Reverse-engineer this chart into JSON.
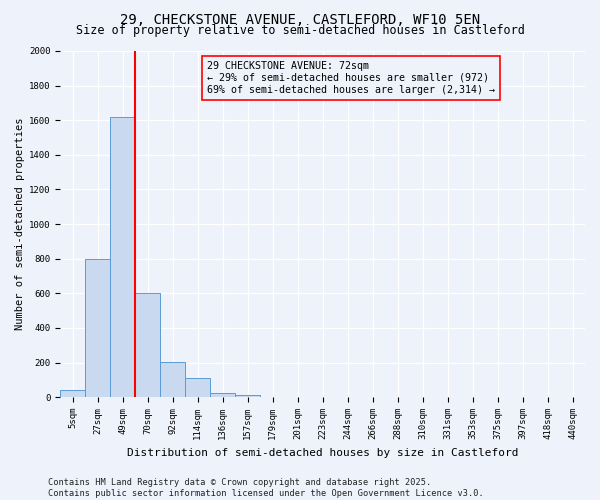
{
  "title": "29, CHECKSTONE AVENUE, CASTLEFORD, WF10 5EN",
  "subtitle": "Size of property relative to semi-detached houses in Castleford",
  "xlabel": "Distribution of semi-detached houses by size in Castleford",
  "ylabel": "Number of semi-detached properties",
  "bins": [
    "5sqm",
    "27sqm",
    "49sqm",
    "70sqm",
    "92sqm",
    "114sqm",
    "136sqm",
    "157sqm",
    "179sqm",
    "201sqm",
    "223sqm",
    "244sqm",
    "266sqm",
    "288sqm",
    "310sqm",
    "331sqm",
    "353sqm",
    "375sqm",
    "397sqm",
    "418sqm",
    "440sqm"
  ],
  "values": [
    40,
    800,
    1620,
    600,
    205,
    110,
    25,
    10,
    0,
    0,
    0,
    0,
    0,
    0,
    0,
    0,
    0,
    0,
    0,
    0,
    0
  ],
  "bar_color": "#c9d9f0",
  "bar_edge_color": "#5b9bd5",
  "red_line_index": 3,
  "annotation_line1": "29 CHECKSTONE AVENUE: 72sqm",
  "annotation_line2": "← 29% of semi-detached houses are smaller (972)",
  "annotation_line3": "69% of semi-detached houses are larger (2,314) →",
  "ylim": [
    0,
    2000
  ],
  "yticks": [
    0,
    200,
    400,
    600,
    800,
    1000,
    1200,
    1400,
    1600,
    1800,
    2000
  ],
  "background_color": "#eef2fa",
  "grid_color": "#ffffff",
  "footer_line1": "Contains HM Land Registry data © Crown copyright and database right 2025.",
  "footer_line2": "Contains public sector information licensed under the Open Government Licence v3.0.",
  "title_fontsize": 10,
  "subtitle_fontsize": 8.5,
  "annotation_fontsize": 7.2,
  "footer_fontsize": 6.2,
  "ylabel_fontsize": 7.5,
  "xlabel_fontsize": 8.0,
  "tick_fontsize": 6.5
}
